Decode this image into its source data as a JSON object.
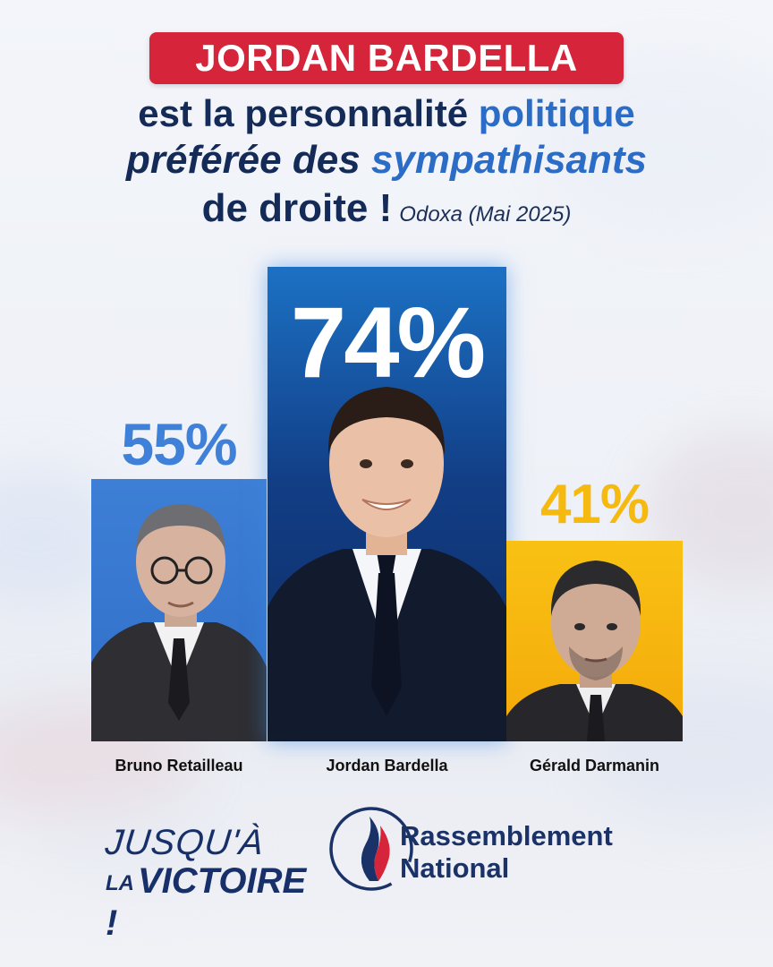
{
  "banner": {
    "name": "JORDAN BARDELLA"
  },
  "headline": {
    "line1_a": "est la personnalité ",
    "line1_b": "politique",
    "line2_a": "préférée des ",
    "line2_b": "sympathisants",
    "line3": "de droite !",
    "source": "Odoxa (Mai 2025)"
  },
  "colors": {
    "red": "#d6243a",
    "navy": "#142a57",
    "blue": "#3e7fd6",
    "dark_blue": "#123e86",
    "yellow": "#f6b90f"
  },
  "chart_data": {
    "type": "bar",
    "categories": [
      "Bruno Retailleau",
      "Jordan Bardella",
      "Gérald Darmanin"
    ],
    "values": [
      55,
      74,
      41
    ],
    "value_labels": [
      "55%",
      "74%",
      "41%"
    ],
    "bar_colors": [
      "#3e7fd6",
      "#123e86",
      "#f6b90f"
    ],
    "title": "",
    "xlabel": "",
    "ylabel": "",
    "ylim": [
      0,
      74
    ],
    "grid": false
  },
  "footer": {
    "slogan_line1": "JUSQU'À",
    "slogan_line2_small": "LA",
    "slogan_line2": "VICTOIRE !",
    "logo_line1": "Rassemblement",
    "logo_line2": "National",
    "logo_icon": "flame-icon"
  }
}
